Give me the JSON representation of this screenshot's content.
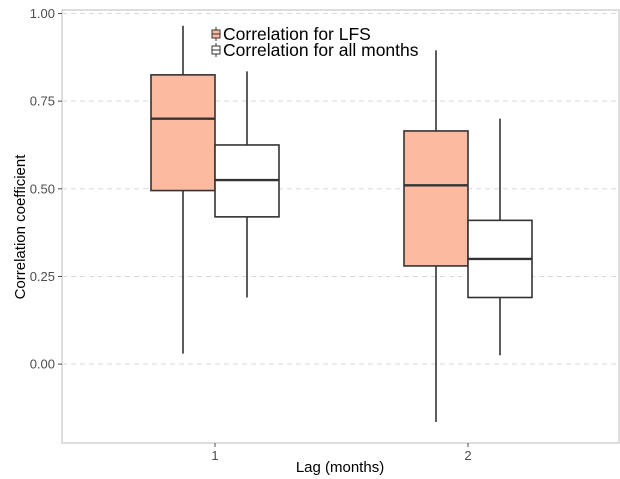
{
  "chart_data": {
    "type": "box",
    "xlabel": "Lag (months)",
    "ylabel": "Correlation coefficient",
    "categories": [
      "1",
      "2"
    ],
    "ylim": [
      -0.225,
      1.01
    ],
    "y_ticks": [
      "0.00",
      "0.25",
      "0.50",
      "0.75",
      "1.00"
    ],
    "grid": "horizontal dashed",
    "legend_position": "top-left inside",
    "series": [
      {
        "name": "Correlation for LFS",
        "fill": "#fcbba1",
        "boxes": [
          {
            "category": "1",
            "min": 0.03,
            "q1": 0.495,
            "median": 0.7,
            "q3": 0.825,
            "max": 0.965
          },
          {
            "category": "2",
            "min": -0.165,
            "q1": 0.28,
            "median": 0.51,
            "q3": 0.665,
            "max": 0.895
          }
        ]
      },
      {
        "name": "Correlation for all months",
        "fill": "#ffffff",
        "boxes": [
          {
            "category": "1",
            "min": 0.19,
            "q1": 0.42,
            "median": 0.525,
            "q3": 0.625,
            "max": 0.835
          },
          {
            "category": "2",
            "min": 0.025,
            "q1": 0.19,
            "median": 0.3,
            "q3": 0.41,
            "max": 0.7
          }
        ]
      }
    ]
  }
}
